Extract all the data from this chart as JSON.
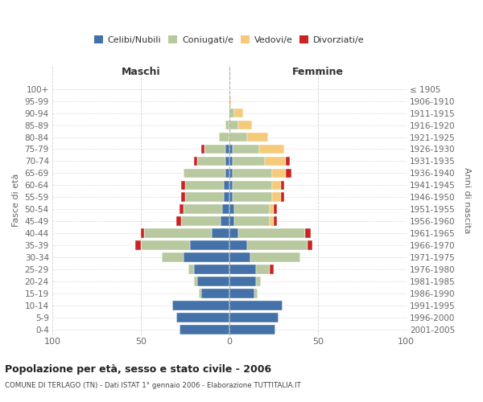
{
  "age_groups_bottom_to_top": [
    "0-4",
    "5-9",
    "10-14",
    "15-19",
    "20-24",
    "25-29",
    "30-34",
    "35-39",
    "40-44",
    "45-49",
    "50-54",
    "55-59",
    "60-64",
    "65-69",
    "70-74",
    "75-79",
    "80-84",
    "85-89",
    "90-94",
    "95-99",
    "100+"
  ],
  "birth_years_bottom_to_top": [
    "2001-2005",
    "1996-2000",
    "1991-1995",
    "1986-1990",
    "1981-1985",
    "1976-1980",
    "1971-1975",
    "1966-1970",
    "1961-1965",
    "1956-1960",
    "1951-1955",
    "1946-1950",
    "1941-1945",
    "1936-1940",
    "1931-1935",
    "1926-1930",
    "1921-1925",
    "1916-1920",
    "1911-1915",
    "1906-1910",
    "≤ 1905"
  ],
  "males_celibi": [
    28,
    30,
    32,
    16,
    18,
    20,
    26,
    22,
    10,
    5,
    4,
    3,
    3,
    2,
    2,
    2,
    0,
    0,
    0,
    0,
    0
  ],
  "males_coniugati": [
    0,
    0,
    0,
    1,
    2,
    3,
    12,
    28,
    38,
    22,
    22,
    22,
    22,
    24,
    16,
    12,
    6,
    2,
    0,
    0,
    0
  ],
  "males_vedovi": [
    0,
    0,
    0,
    0,
    0,
    0,
    0,
    0,
    0,
    0,
    0,
    0,
    0,
    0,
    0,
    0,
    0,
    0,
    0,
    0,
    0
  ],
  "males_divorziati": [
    0,
    0,
    0,
    0,
    0,
    0,
    0,
    3,
    2,
    3,
    2,
    2,
    2,
    0,
    2,
    2,
    0,
    0,
    0,
    0,
    0
  ],
  "females_nubili": [
    26,
    28,
    30,
    14,
    15,
    15,
    12,
    10,
    5,
    3,
    3,
    2,
    2,
    2,
    2,
    2,
    0,
    0,
    0,
    0,
    0
  ],
  "females_coniugate": [
    0,
    0,
    0,
    2,
    3,
    8,
    28,
    34,
    38,
    20,
    20,
    22,
    22,
    22,
    18,
    15,
    10,
    5,
    3,
    0,
    0
  ],
  "females_vedove": [
    0,
    0,
    0,
    0,
    0,
    0,
    0,
    0,
    0,
    2,
    2,
    5,
    5,
    8,
    12,
    14,
    12,
    8,
    5,
    1,
    0
  ],
  "females_divorziate": [
    0,
    0,
    0,
    0,
    0,
    2,
    0,
    3,
    3,
    2,
    2,
    2,
    2,
    3,
    2,
    0,
    0,
    0,
    0,
    0,
    0
  ],
  "color_celibi": "#4472a8",
  "color_coniugati": "#b8c9a0",
  "color_vedovi": "#f5ca7a",
  "color_divorziati": "#cc2222",
  "xlim": 100,
  "title": "Popolazione per età, sesso e stato civile - 2006",
  "subtitle": "COMUNE DI TERLAGO (TN) - Dati ISTAT 1° gennaio 2006 - Elaborazione TUTTITALIA.IT",
  "ylabel_left": "Fasce di età",
  "ylabel_right": "Anni di nascita",
  "label_maschi": "Maschi",
  "label_femmine": "Femmine",
  "legend_labels": [
    "Celibi/Nubili",
    "Coniugati/e",
    "Vedovi/e",
    "Divorziati/e"
  ],
  "bg_color": "#ffffff",
  "grid_color": "#cccccc"
}
